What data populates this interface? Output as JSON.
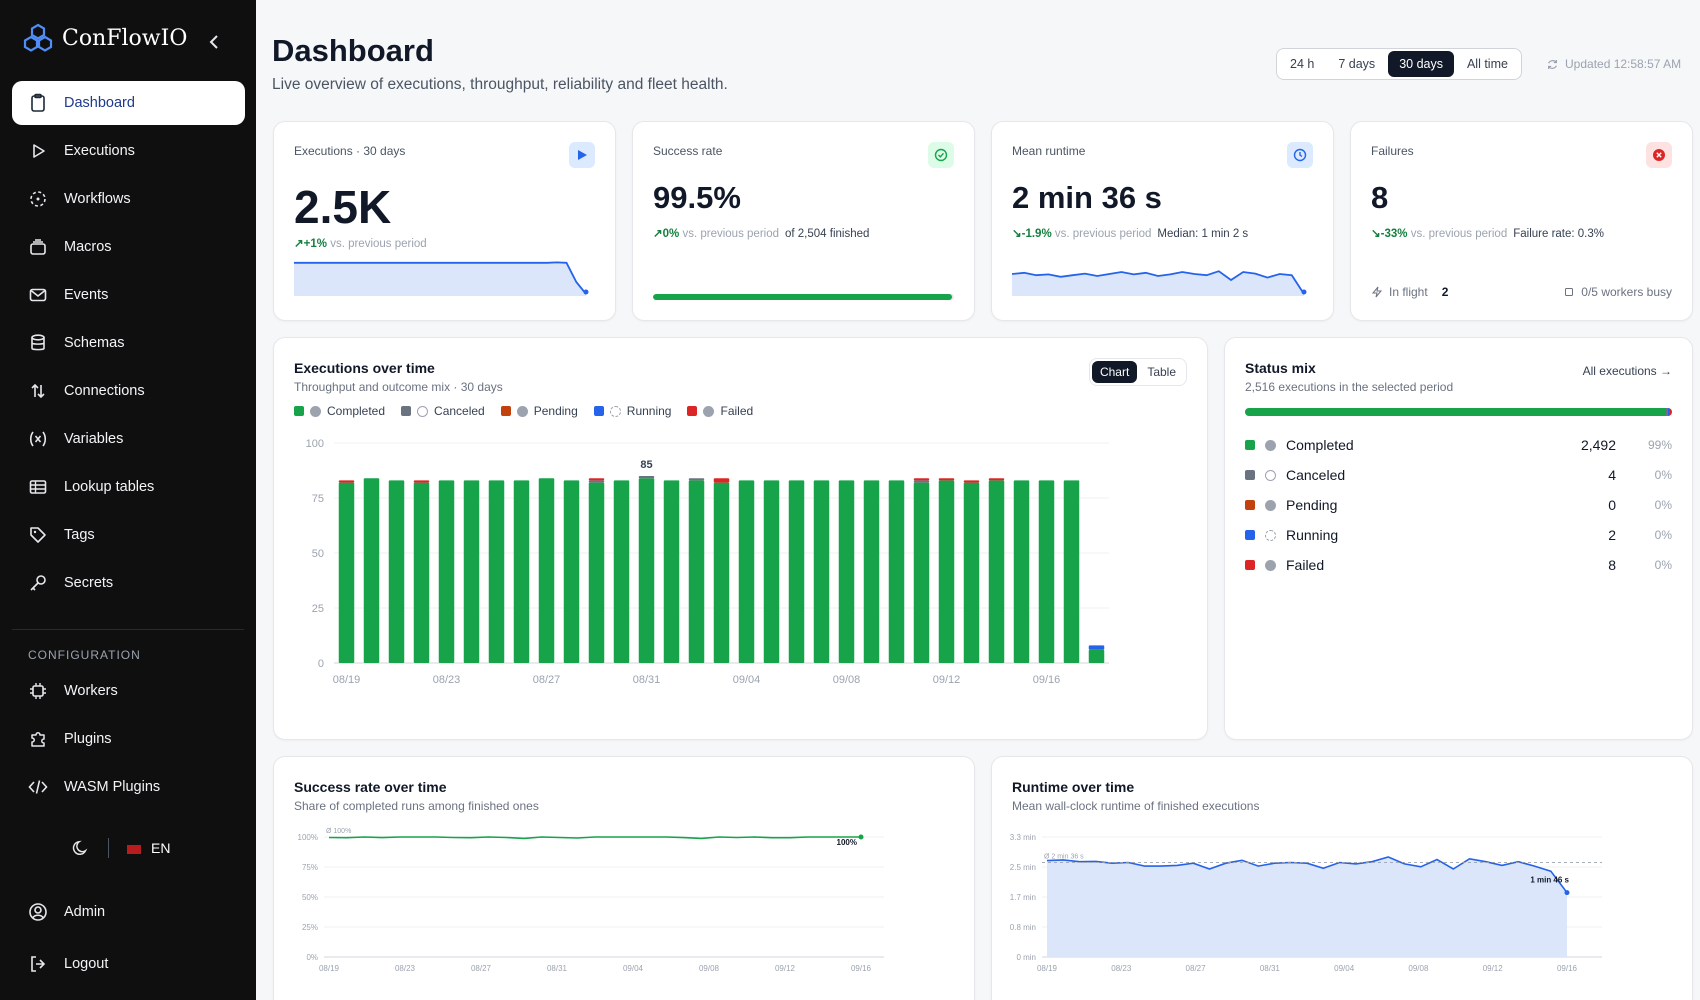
{
  "brand": {
    "name": "ConFlowIO"
  },
  "sidebar": {
    "items": [
      {
        "label": "Dashboard",
        "icon": "clipboard-icon"
      },
      {
        "label": "Executions",
        "icon": "play-icon"
      },
      {
        "label": "Workflows",
        "icon": "workflow-icon"
      },
      {
        "label": "Macros",
        "icon": "stack-icon"
      },
      {
        "label": "Events",
        "icon": "mail-icon"
      },
      {
        "label": "Schemas",
        "icon": "database-icon"
      },
      {
        "label": "Connections",
        "icon": "arrows-updown-icon"
      },
      {
        "label": "Variables",
        "icon": "variable-icon"
      },
      {
        "label": "Lookup tables",
        "icon": "table-icon"
      },
      {
        "label": "Tags",
        "icon": "tag-icon"
      },
      {
        "label": "Secrets",
        "icon": "key-icon"
      }
    ],
    "config_label": "CONFIGURATION",
    "config_items": [
      {
        "label": "Workers",
        "icon": "cpu-icon"
      },
      {
        "label": "Plugins",
        "icon": "puzzle-icon"
      },
      {
        "label": "WASM Plugins",
        "icon": "code-icon"
      }
    ],
    "lang": "EN",
    "admin": "Admin",
    "logout": "Logout"
  },
  "header": {
    "title": "Dashboard",
    "subtitle": "Live overview of executions, throughput, reliability and fleet health.",
    "ranges": [
      "24 h",
      "7 days",
      "30 days",
      "All time"
    ],
    "active_range": "30 days",
    "updated": "Updated 12:58:57 AM"
  },
  "kpis": {
    "executions": {
      "label": "Executions · 30 days",
      "value": "2.5K",
      "delta": "+1%",
      "delta_text": "vs. previous period"
    },
    "success": {
      "label": "Success rate",
      "value": "99.5%",
      "delta": "0%",
      "delta_text": "vs. previous period",
      "extra": "of 2,504 finished",
      "progress": 0.995
    },
    "runtime": {
      "label": "Mean runtime",
      "value": "2 min 36 s",
      "delta": "-1.9%",
      "delta_text": "vs. previous period",
      "extra": "Median: 1 min 2 s"
    },
    "failures": {
      "label": "Failures",
      "value": "8",
      "delta": "-33%",
      "delta_text": "vs. previous period",
      "extra": "Failure rate: 0.3%",
      "inflight_label": "In flight",
      "inflight_value": "2",
      "workers": "0/5 workers busy"
    }
  },
  "exec_chart": {
    "title": "Executions over time",
    "subtitle": "Throughput and outcome mix · 30 days",
    "toggle": [
      "Chart",
      "Table"
    ],
    "active_toggle": "Chart",
    "legend": [
      {
        "name": "Completed",
        "color": "#16a34a"
      },
      {
        "name": "Canceled",
        "color": "#6b7280"
      },
      {
        "name": "Pending",
        "color": "#c2410c"
      },
      {
        "name": "Running",
        "color": "#2563eb"
      },
      {
        "name": "Failed",
        "color": "#dc2626"
      }
    ]
  },
  "status_mix": {
    "title": "Status mix",
    "subtitle": "2,516 executions in the selected period",
    "link": "All executions →",
    "rows": [
      {
        "name": "Completed",
        "count": "2,492",
        "pct": "99%",
        "color": "#16a34a"
      },
      {
        "name": "Canceled",
        "count": "4",
        "pct": "0%",
        "color": "#6b7280"
      },
      {
        "name": "Pending",
        "count": "0",
        "pct": "0%",
        "color": "#c2410c"
      },
      {
        "name": "Running",
        "count": "2",
        "pct": "0%",
        "color": "#2563eb"
      },
      {
        "name": "Failed",
        "count": "8",
        "pct": "0%",
        "color": "#dc2626"
      }
    ]
  },
  "success_chart": {
    "title": "Success rate over time",
    "subtitle": "Share of completed runs among finished ones",
    "avg_label": "Ø 100%",
    "last_label": "100%"
  },
  "runtime_chart": {
    "title": "Runtime over time",
    "subtitle": "Mean wall-clock runtime of finished executions",
    "avg_label": "Ø 2 min 36 s",
    "last_label": "1 min 46 s"
  },
  "chart_data": [
    {
      "type": "bar",
      "title": "Executions over time",
      "x": [
        "08/19",
        "08/20",
        "08/21",
        "08/22",
        "08/23",
        "08/24",
        "08/25",
        "08/26",
        "08/27",
        "08/28",
        "08/29",
        "08/30",
        "08/31",
        "09/01",
        "09/02",
        "09/03",
        "09/04",
        "09/05",
        "09/06",
        "09/07",
        "09/08",
        "09/09",
        "09/10",
        "09/11",
        "09/12",
        "09/13",
        "09/14",
        "09/15",
        "09/16",
        "09/17",
        "09/18"
      ],
      "x_ticks": [
        "08/19",
        "08/23",
        "08/27",
        "08/31",
        "09/04",
        "09/08",
        "09/12",
        "09/16"
      ],
      "ylim": [
        0,
        100
      ],
      "y_ticks": [
        0,
        25,
        50,
        75,
        100
      ],
      "series": [
        {
          "name": "Completed",
          "values": [
            82,
            84,
            83,
            82,
            83,
            83,
            83,
            83,
            84,
            83,
            82,
            83,
            84,
            83,
            83,
            82,
            83,
            83,
            83,
            83,
            83,
            83,
            83,
            82,
            83,
            82,
            83,
            83,
            83,
            83,
            6
          ]
        },
        {
          "name": "Canceled",
          "values": [
            0,
            0,
            0,
            0,
            0,
            0,
            0,
            0,
            0,
            0,
            1,
            0,
            1,
            0,
            1,
            0,
            0,
            0,
            0,
            0,
            0,
            0,
            0,
            1,
            0,
            0,
            0,
            0,
            0,
            0,
            0
          ]
        },
        {
          "name": "Pending",
          "values": [
            0,
            0,
            0,
            0,
            0,
            0,
            0,
            0,
            0,
            0,
            0,
            0,
            0,
            0,
            0,
            0,
            0,
            0,
            0,
            0,
            0,
            0,
            0,
            0,
            0,
            0,
            0,
            0,
            0,
            0,
            0
          ]
        },
        {
          "name": "Running",
          "values": [
            0,
            0,
            0,
            0,
            0,
            0,
            0,
            0,
            0,
            0,
            0,
            0,
            0,
            0,
            0,
            0,
            0,
            0,
            0,
            0,
            0,
            0,
            0,
            0,
            0,
            0,
            0,
            0,
            0,
            0,
            2
          ]
        },
        {
          "name": "Failed",
          "values": [
            1,
            0,
            0,
            1,
            0,
            0,
            0,
            0,
            0,
            0,
            1,
            0,
            0,
            0,
            0,
            2,
            0,
            0,
            0,
            0,
            0,
            0,
            0,
            1,
            1,
            1,
            1,
            0,
            0,
            0,
            0
          ]
        }
      ],
      "annotation": {
        "x": "08/31",
        "label": "85"
      }
    },
    {
      "type": "line",
      "title": "Success rate over time",
      "x_ticks": [
        "08/19",
        "08/23",
        "08/27",
        "08/31",
        "09/04",
        "09/08",
        "09/12",
        "09/16"
      ],
      "y_ticks": [
        "0%",
        "25%",
        "50%",
        "75%",
        "100%"
      ],
      "ylim": [
        0,
        100
      ],
      "values": [
        99.6,
        99.4,
        100,
        99.5,
        100,
        100,
        100,
        99.6,
        99.4,
        100,
        99.6,
        98.8,
        100,
        99.6,
        99.2,
        100,
        100,
        100,
        100,
        100,
        99.5,
        98.8,
        100,
        99.6,
        100,
        99.4,
        99.4,
        100,
        100,
        100,
        100
      ]
    },
    {
      "type": "area",
      "title": "Runtime over time",
      "x_ticks": [
        "08/19",
        "08/23",
        "08/27",
        "08/31",
        "09/04",
        "09/08",
        "09/12",
        "09/16"
      ],
      "y_ticks": [
        "0 min",
        "0.8 min",
        "1.7 min",
        "2.5 min",
        "3.3 min"
      ],
      "ylim": [
        0,
        3.3
      ],
      "values_min": [
        2.65,
        2.67,
        2.62,
        2.63,
        2.58,
        2.6,
        2.5,
        2.5,
        2.52,
        2.58,
        2.42,
        2.58,
        2.66,
        2.5,
        2.58,
        2.6,
        2.58,
        2.44,
        2.6,
        2.56,
        2.62,
        2.75,
        2.56,
        2.48,
        2.68,
        2.42,
        2.7,
        2.62,
        2.52,
        2.62,
        2.5,
        2.36,
        1.77
      ]
    },
    {
      "type": "area",
      "title": "Executions sparkline",
      "values": [
        0.83,
        0.83,
        0.83,
        0.83,
        0.83,
        0.83,
        0.83,
        0.83,
        0.83,
        0.83,
        0.83,
        0.83,
        0.83,
        0.83,
        0.83,
        0.83,
        0.83,
        0.83,
        0.83,
        0.83,
        0.83,
        0.83,
        0.83,
        0.83,
        0.83,
        0.83,
        0.83,
        0.84,
        0.83,
        0.35,
        0.05
      ]
    },
    {
      "type": "area",
      "title": "Runtime sparkline",
      "values": [
        0.55,
        0.58,
        0.52,
        0.54,
        0.48,
        0.52,
        0.56,
        0.5,
        0.55,
        0.6,
        0.54,
        0.58,
        0.5,
        0.54,
        0.6,
        0.55,
        0.52,
        0.62,
        0.4,
        0.6,
        0.56,
        0.46,
        0.55,
        0.52,
        0.05
      ]
    }
  ]
}
